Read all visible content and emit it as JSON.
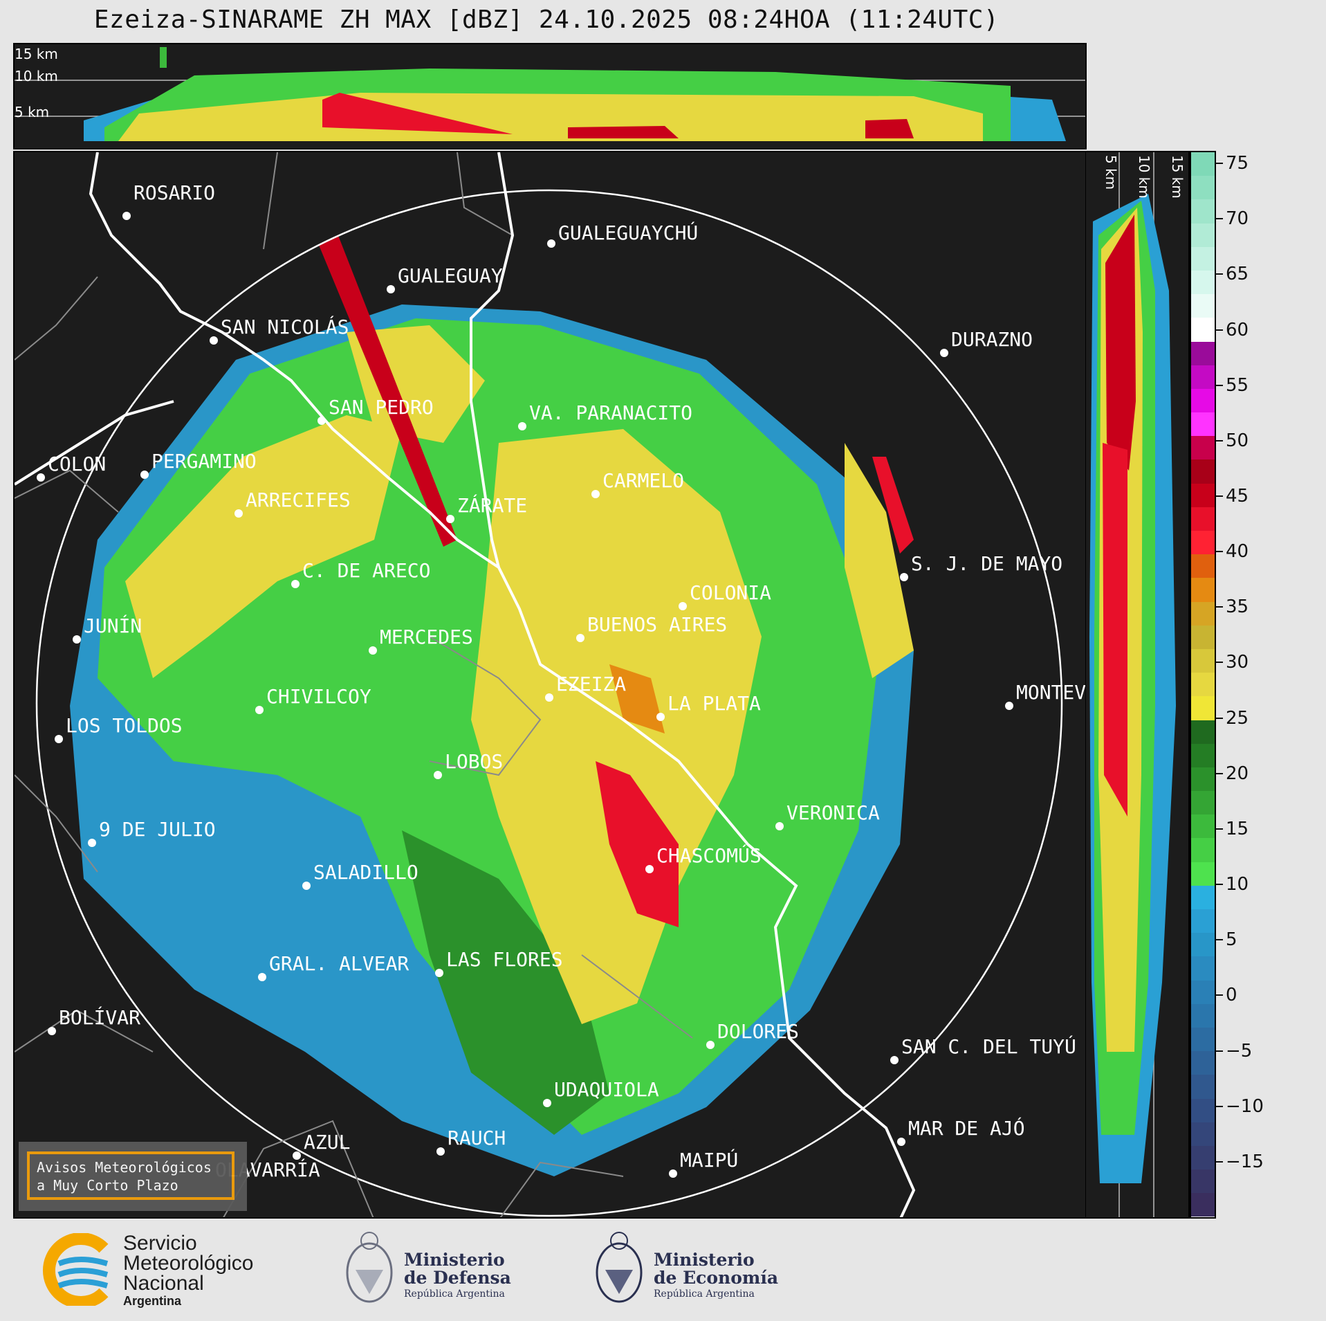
{
  "title": "Ezeiza-SINARAME ZH MAX [dBZ] 24.10.2025 08:24HOA (11:24UTC)",
  "top_panel": {
    "altitude_labels": [
      "15 km",
      "10 km",
      "5 km"
    ]
  },
  "side_panel": {
    "altitude_labels": [
      "5 km",
      "10 km",
      "15 km"
    ]
  },
  "colorbar": {
    "unit": "dBZ",
    "tick_labels": [
      "75",
      "70",
      "65",
      "60",
      "55",
      "50",
      "45",
      "40",
      "35",
      "30",
      "25",
      "20",
      "15",
      "10",
      "5",
      "0",
      "−5",
      "−10",
      "−15"
    ],
    "range": [
      -20,
      76
    ],
    "colors_top_to_bottom": [
      "#7fd9b7",
      "#8edfc0",
      "#9fe5cb",
      "#b1ebd6",
      "#c4f1e2",
      "#d6f7ed",
      "#eafbf6",
      "#ffffff",
      "#9a0b9a",
      "#c40ac4",
      "#e60ae6",
      "#ff33ff",
      "#c8004b",
      "#a80018",
      "#c8001a",
      "#e8102a",
      "#ff2233",
      "#e0600e",
      "#e58a12",
      "#d6a524",
      "#c8b432",
      "#d8c83a",
      "#e6d840",
      "#f0e636",
      "#1f6a1f",
      "#247d24",
      "#2b912b",
      "#34a534",
      "#3cba3c",
      "#45cf45",
      "#4ee24e",
      "#2ab0e0",
      "#2aa0d4",
      "#2896c8",
      "#2a8bc0",
      "#2a80b6",
      "#2a76ac",
      "#2c6ca2",
      "#2e6298",
      "#30588e",
      "#324e84",
      "#34467a",
      "#363e70",
      "#383666",
      "#3a2e5e"
    ]
  },
  "warning_box": {
    "line1": "Avisos Meteorológicos",
    "line2": "a Muy Corto Plazo"
  },
  "cities": [
    {
      "name": "ROSARIO"
    },
    {
      "name": "GUALEGUAYCHÚ"
    },
    {
      "name": "GUALEGUAY"
    },
    {
      "name": "SAN NICOLÁS"
    },
    {
      "name": "DURAZNO"
    },
    {
      "name": "SAN PEDRO"
    },
    {
      "name": "VA. PARANACITO"
    },
    {
      "name": "COLON"
    },
    {
      "name": "PERGAMINO"
    },
    {
      "name": "CARMELO"
    },
    {
      "name": "ARRECIFES"
    },
    {
      "name": "ZÁRATE"
    },
    {
      "name": "S. J. DE MAYO"
    },
    {
      "name": "C. DE ARECO"
    },
    {
      "name": "COLONIA"
    },
    {
      "name": "JUNÍN"
    },
    {
      "name": "BUENOS AIRES"
    },
    {
      "name": "MERCEDES"
    },
    {
      "name": "EZEIZA"
    },
    {
      "name": "MONTEV"
    },
    {
      "name": "CHIVILCOY"
    },
    {
      "name": "LA PLATA"
    },
    {
      "name": "LOS TOLDOS"
    },
    {
      "name": "LOBOS"
    },
    {
      "name": "VERONICA"
    },
    {
      "name": "9 DE JULIO"
    },
    {
      "name": "CHASCOMÚS"
    },
    {
      "name": "SALADILLO"
    },
    {
      "name": "GRAL. ALVEAR"
    },
    {
      "name": "LAS FLORES"
    },
    {
      "name": "BOLÍVAR"
    },
    {
      "name": "DOLORES"
    },
    {
      "name": "SAN C. DEL TUYÚ"
    },
    {
      "name": "UDAQUIOLA"
    },
    {
      "name": "MAR DE AJÓ"
    },
    {
      "name": "AZUL"
    },
    {
      "name": "RAUCH"
    },
    {
      "name": "OLAVARRÍA"
    },
    {
      "name": "MAIPÚ"
    }
  ],
  "footer": {
    "smn": {
      "line1": "Servicio",
      "line2": "Meteorológico",
      "line3": "Nacional",
      "line4": "Argentina"
    },
    "defensa": {
      "line1": "Ministerio",
      "line2": "de Defensa",
      "line3": "República Argentina"
    },
    "economia": {
      "line1": "Ministerio",
      "line2": "de Economía",
      "line3": "República Argentina"
    }
  },
  "colors": {
    "panel_bg": "#1c1c1c",
    "range_ring": "#ffffff",
    "coast": "#ffffff",
    "border": "#8a8a8a",
    "warn_border": "#f5a10d"
  }
}
